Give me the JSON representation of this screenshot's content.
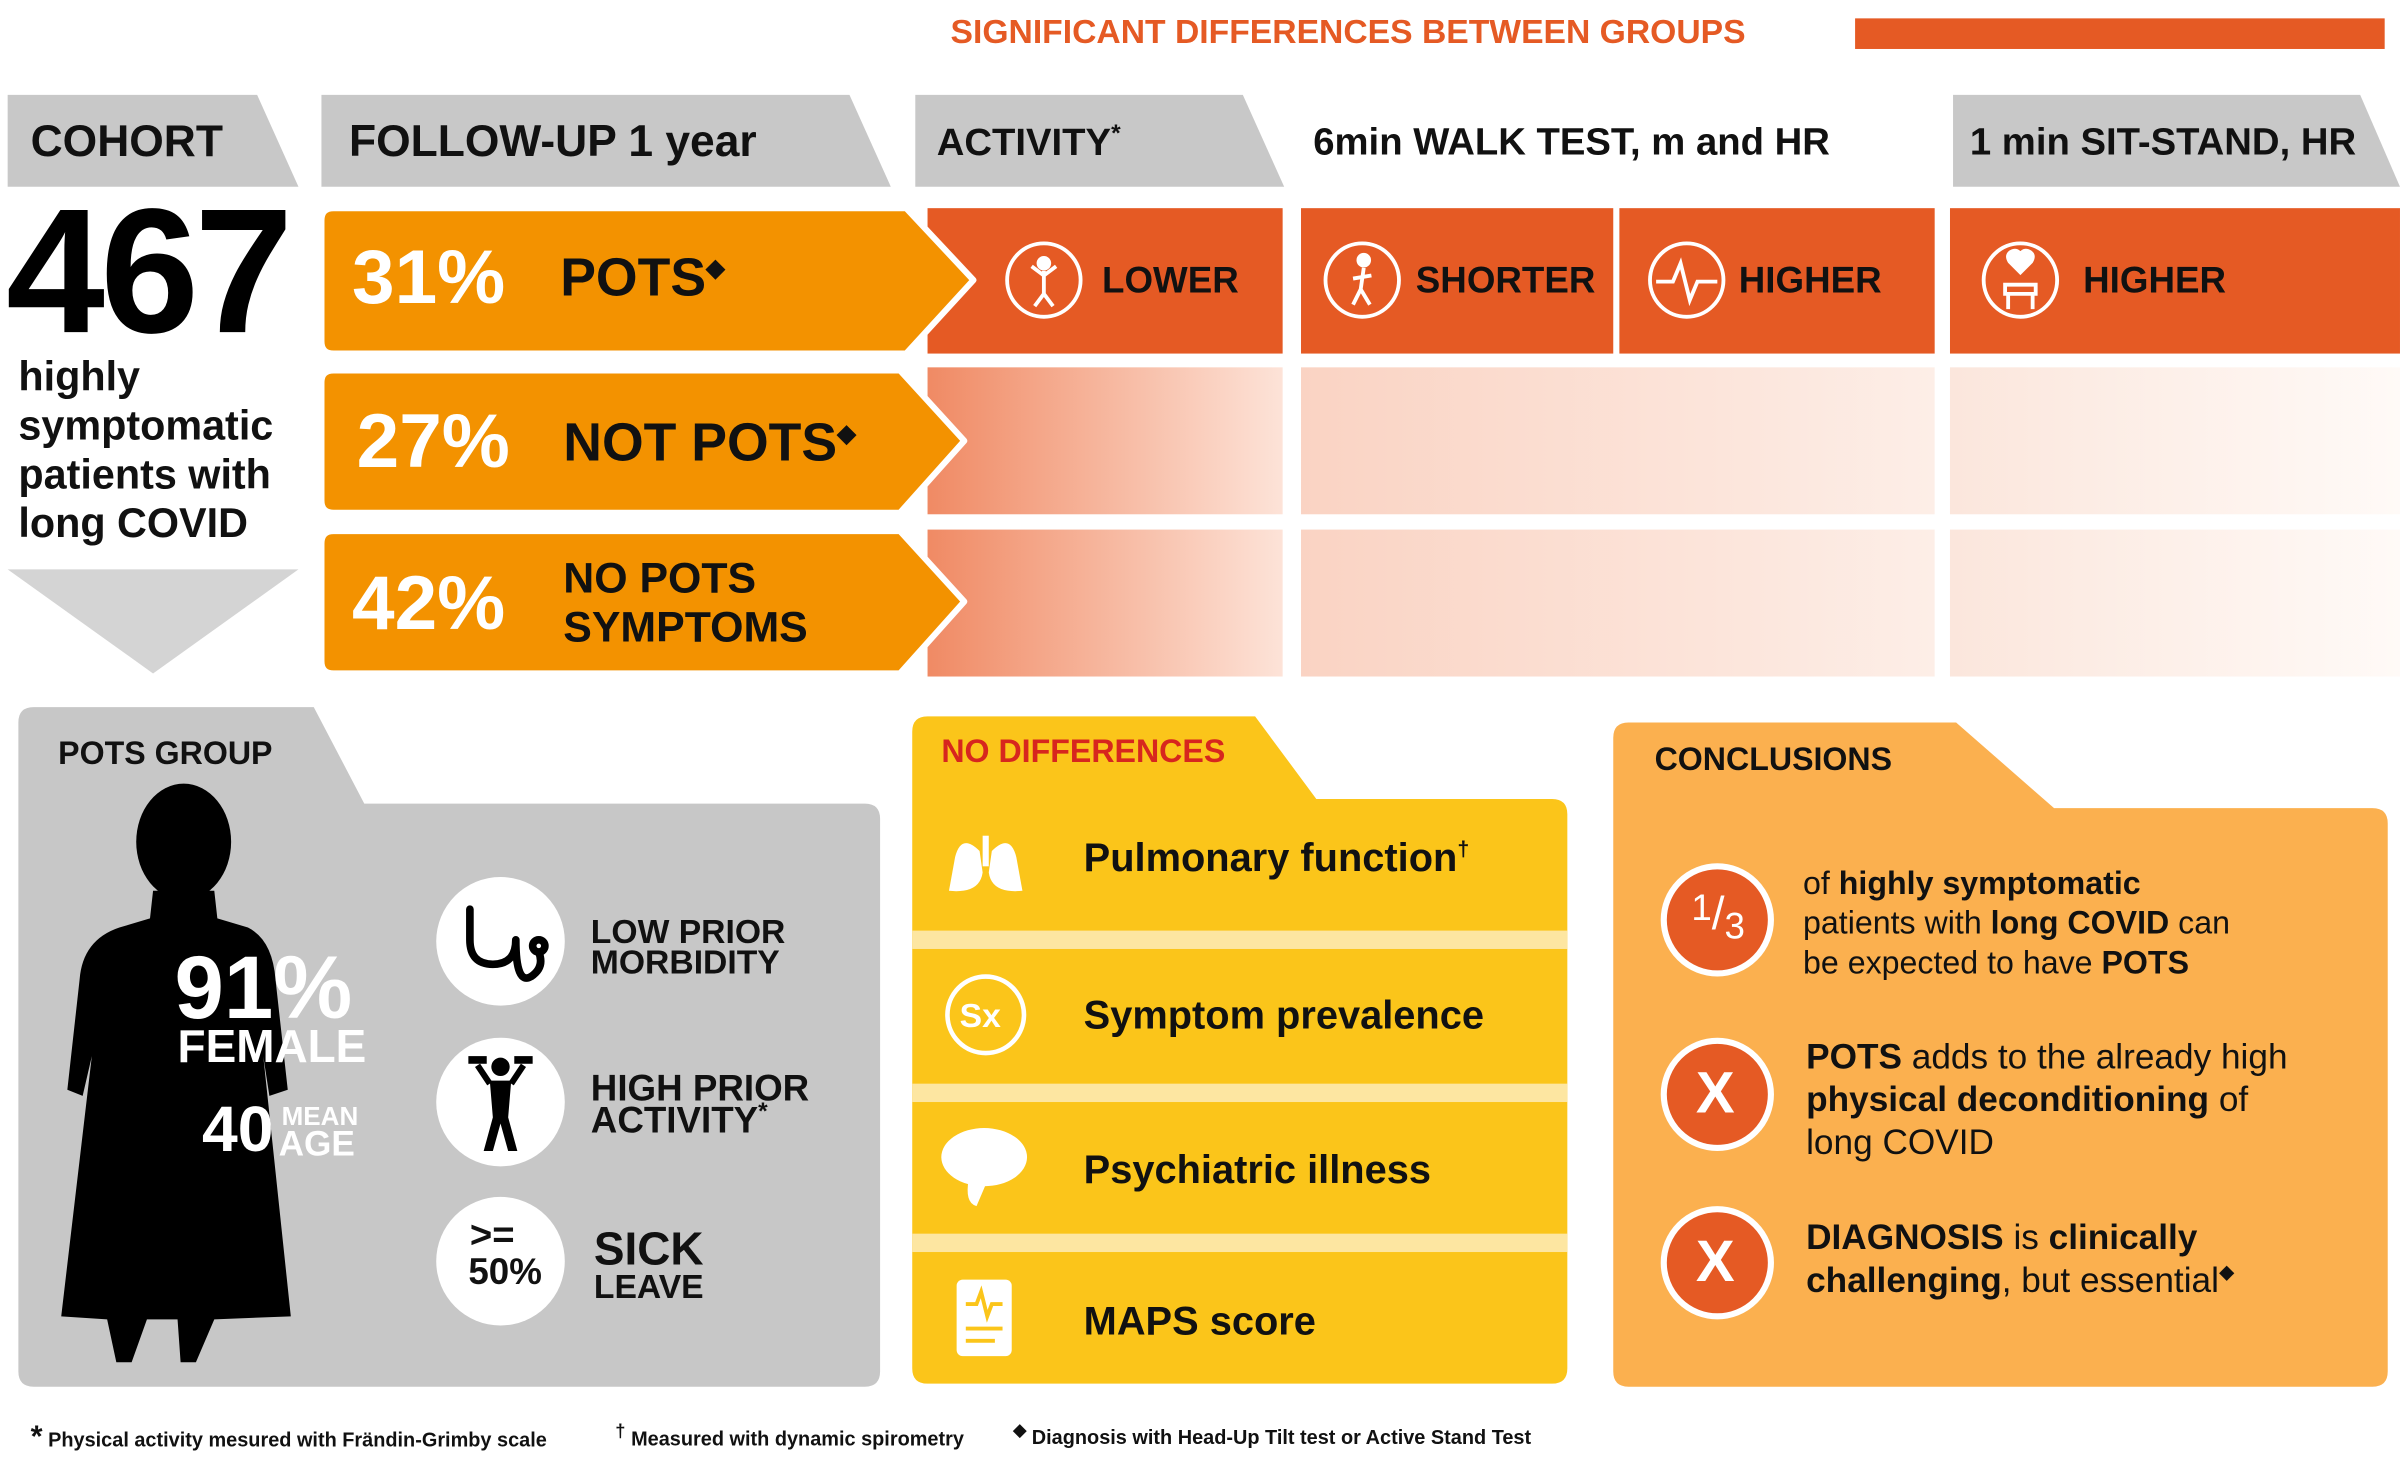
{
  "header": {
    "significant": "SIGNIFICANT DIFFERENCES BETWEEN GROUPS"
  },
  "cohort": {
    "label": "COHORT",
    "count": "467",
    "description": [
      "highly",
      "symptomatic",
      "patients with",
      "long COVID"
    ]
  },
  "followup": {
    "label": "FOLLOW-UP 1 year",
    "groups": [
      {
        "percent": "31%",
        "label": "POTS",
        "mark": "◆"
      },
      {
        "percent": "27%",
        "label": "NOT POTS",
        "mark": "◆"
      },
      {
        "percent": "42%",
        "label_lines": [
          "NO POTS",
          "SYMPTOMS"
        ]
      }
    ]
  },
  "columns": {
    "activity": {
      "label": "ACTIVITY",
      "mark": "*",
      "result": "LOWER",
      "icon": "exercise-icon"
    },
    "walk": {
      "label": "6min WALK TEST, m and HR",
      "result_m": "SHORTER",
      "result_hr": "HIGHER",
      "icon_m": "walking-icon",
      "icon_hr": "heart-rate-icon"
    },
    "sitstand": {
      "label": "1 min SIT-STAND, HR",
      "result": "HIGHER",
      "icon": "chair-heart-icon"
    }
  },
  "pots_group": {
    "title": "POTS GROUP",
    "female_percent": "91%",
    "female_label": "FEMALE",
    "age_value": "40",
    "age_label_top": "MEAN",
    "age_label_bottom": "AGE",
    "items": [
      {
        "icon": "stethoscope-icon",
        "lines": [
          "LOW PRIOR",
          "MORBIDITY"
        ]
      },
      {
        "icon": "dumbbell-person-icon",
        "lines": [
          "HIGH PRIOR",
          "ACTIVITY"
        ],
        "mark": "*"
      },
      {
        "badge_top": ">=",
        "badge_bottom": "50%",
        "lines": [
          "SICK",
          "LEAVE"
        ]
      }
    ]
  },
  "no_differences": {
    "title": "NO DIFFERENCES",
    "items": [
      {
        "icon": "lungs-icon",
        "label": "Pulmonary function",
        "mark": "†"
      },
      {
        "icon": "sx-icon",
        "badge": "Sx",
        "label": "Symptom prevalence"
      },
      {
        "icon": "brain-icon",
        "label": "Psychiatric illness"
      },
      {
        "icon": "document-pulse-icon",
        "label": "MAPS score"
      }
    ]
  },
  "conclusions": {
    "title": "CONCLUSIONS",
    "fraction_num": "1",
    "fraction_slash": "/",
    "fraction_den": "3",
    "items": [
      {
        "line1": [
          "of ",
          "highly symptomatic"
        ],
        "line2": [
          "patients with ",
          "long COVID",
          " can"
        ],
        "line3": [
          "be expected to have ",
          "POTS"
        ]
      },
      {
        "badge": "X",
        "line1": [
          "POTS",
          " adds to the already high"
        ],
        "line2": [
          "physical deconditioning",
          " of"
        ],
        "line3": [
          "long COVID"
        ]
      },
      {
        "badge": "X",
        "line1": [
          "DIAGNOSIS",
          " is ",
          "clinically"
        ],
        "line2": [
          "challenging",
          ", but essential"
        ],
        "mark": "◆"
      }
    ]
  },
  "footnotes": [
    {
      "mark": "*",
      "text": "Physical activity mesured with Frändin-Grimby scale"
    },
    {
      "mark": "†",
      "text": "Measured with dynamic spirometry"
    },
    {
      "mark": "◆",
      "text": "Diagnosis with Head-Up Tilt test or Active Stand Test"
    }
  ],
  "colors": {
    "orange_dark": "#e55a24",
    "orange": "#f39200",
    "yellow": "#fbc51a",
    "light_orange": "#fbb04f",
    "gray": "#c7c7c7",
    "red_title": "#d7261e"
  }
}
